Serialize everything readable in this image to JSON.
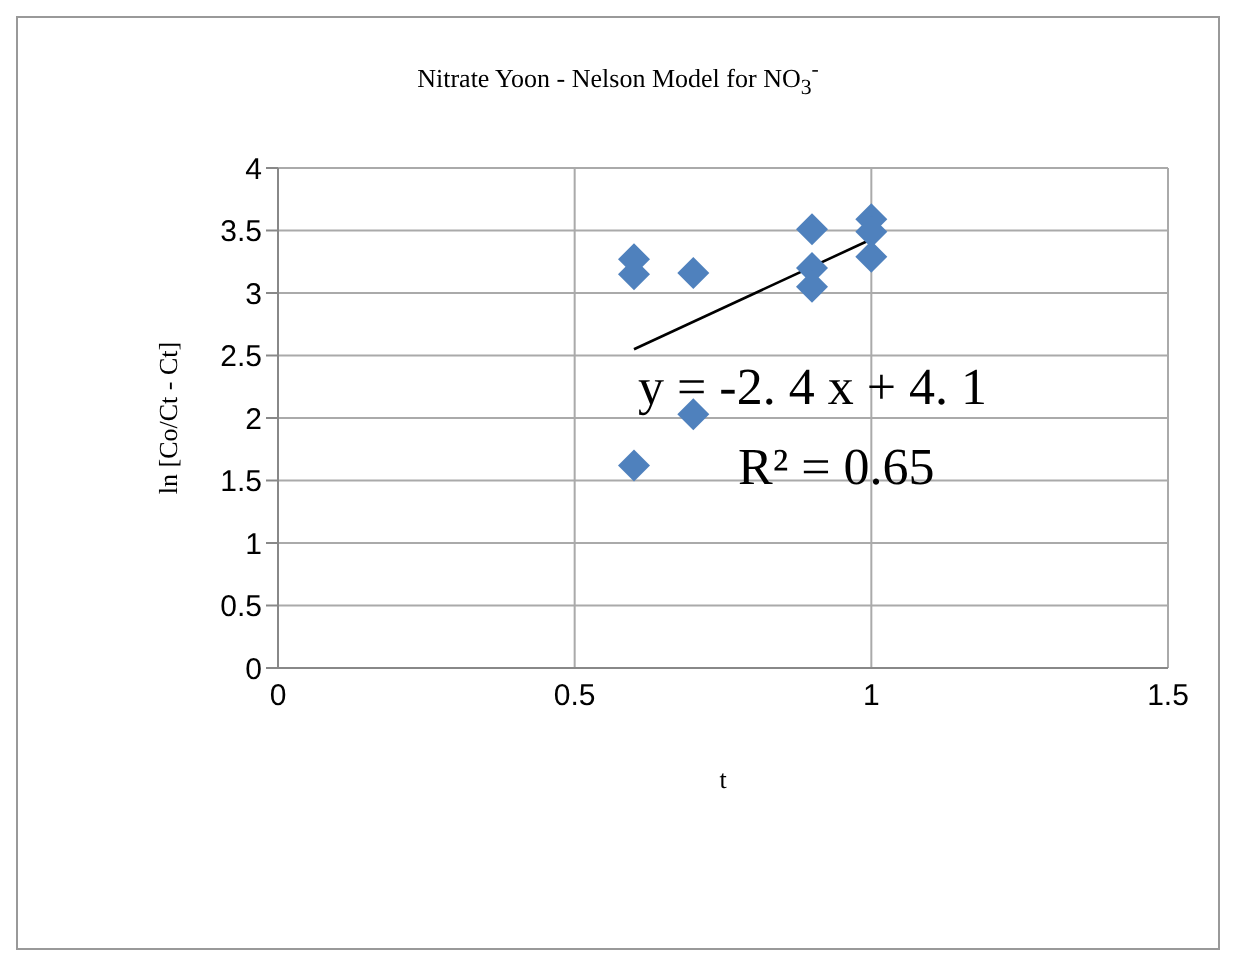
{
  "chart_data": {
    "type": "scatter",
    "title": "Nitrate Yoon - Nelson Model for NO$_{3}$$^{-}$",
    "xlabel": "t",
    "ylabel": "ln [Co/Ct - Ct]",
    "xlim": [
      0,
      1.5
    ],
    "xticks": [
      0,
      0.5,
      1,
      1.5
    ],
    "ylim": [
      0,
      4
    ],
    "yticks": [
      0,
      0.5,
      1,
      1.5,
      2,
      2.5,
      3,
      3.5,
      4
    ],
    "grid": true,
    "series": [
      {
        "marker": "diamond",
        "color": "#4f81bd",
        "x": [
          0.6,
          0.6,
          0.6,
          0.7,
          0.7,
          0.9,
          0.9,
          0.9,
          1,
          1,
          1
        ],
        "values": [
          3.27,
          3.15,
          1.62,
          3.16,
          2.03,
          3.51,
          3.2,
          3.05,
          3.59,
          3.49,
          3.29
        ]
      },
      {
        "type": "line",
        "marker": "none",
        "color": "#000000",
        "x": [
          0.6,
          1
        ],
        "values": [
          2.55,
          3.43
        ]
      }
    ],
    "annotations": [
      "y =  -2. 4 x + 4. 1",
      "R² =  0.65"
    ]
  }
}
